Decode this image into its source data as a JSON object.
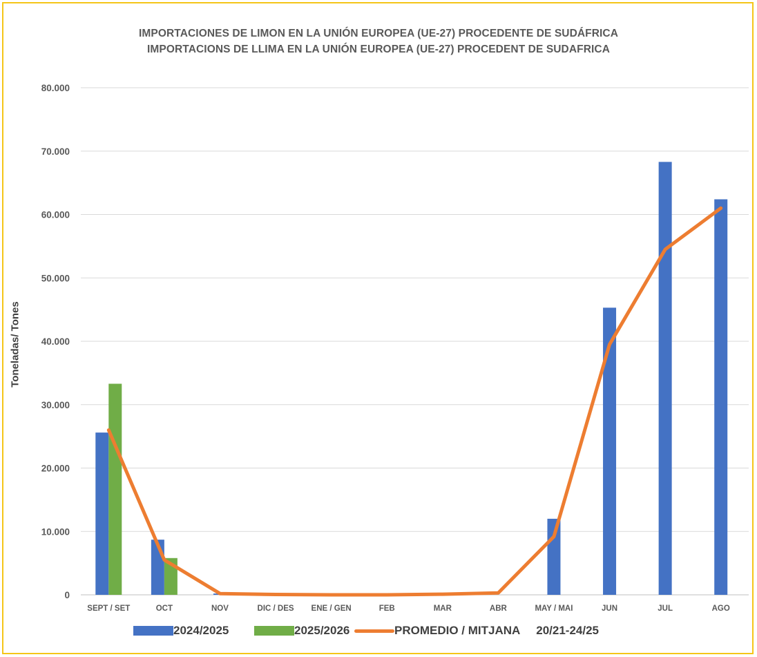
{
  "chart_data": {
    "type": "bar",
    "title": "IMPORTACIONES DE LIMON EN LA UNIÓN EUROPEA (UE-27) PROCEDENTE DE SUDÁFRICA",
    "subtitle": "IMPORTACIONS DE LLIMA EN LA UNIÓN EUROPEA (UE-27) PROCEDENT DE SUDAFRICA",
    "xlabel": "",
    "ylabel": "Toneladas/ Tones",
    "ylim": [
      0,
      80000
    ],
    "yticks": [
      0,
      10000,
      20000,
      30000,
      40000,
      50000,
      60000,
      70000,
      80000
    ],
    "ytick_labels": [
      "0",
      "10.000",
      "20.000",
      "30.000",
      "40.000",
      "50.000",
      "60.000",
      "70.000",
      "80.000"
    ],
    "grid": true,
    "legend_position": "bottom",
    "categories": [
      "SEPT / SET",
      "OCT",
      "NOV",
      "DIC / DES",
      "ENE / GEN",
      "FEB",
      "MAR",
      "ABR",
      "MAY / MAI",
      "JUN",
      "JUL",
      "AGO"
    ],
    "series": [
      {
        "name": "2024/2025",
        "type": "bar",
        "color": "#4472c4",
        "values": [
          25600,
          8700,
          200,
          0,
          0,
          0,
          0,
          0,
          12000,
          45300,
          68300,
          62400
        ]
      },
      {
        "name": "2025/2026",
        "type": "bar",
        "color": "#70ad47",
        "values": [
          33300,
          5800,
          null,
          null,
          null,
          null,
          null,
          null,
          null,
          null,
          null,
          null
        ]
      },
      {
        "name": "PROMEDIO / MITJANA     20/21-24/25",
        "type": "line",
        "color": "#ed7d31",
        "values": [
          26000,
          5500,
          200,
          50,
          0,
          0,
          100,
          300,
          9200,
          39500,
          54500,
          61000
        ]
      }
    ]
  }
}
